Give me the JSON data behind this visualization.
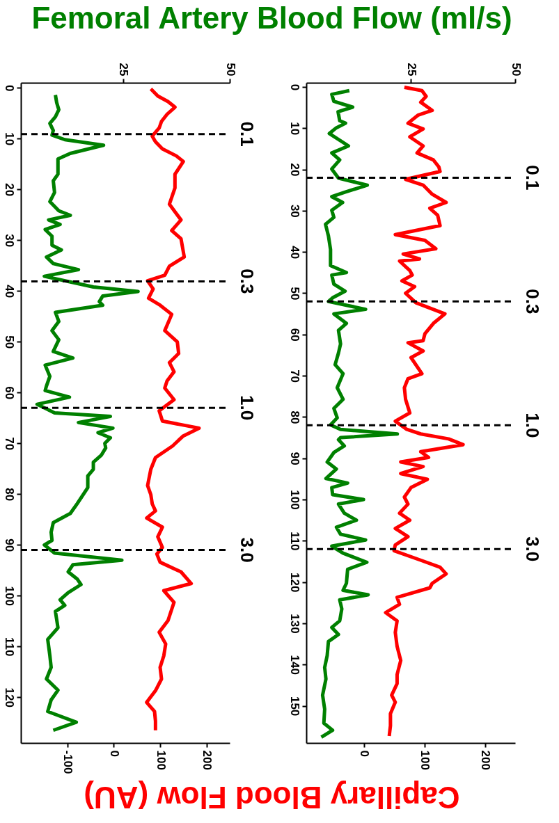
{
  "chart_data": [
    {
      "type": "line",
      "x2label": "Femoral Artery Blood Flow (ml/s)",
      "xlabel": "Capillary Blood Flow (AU)",
      "ylim": [
        129,
        -1
      ],
      "yticks": [
        0,
        10,
        20,
        30,
        40,
        50,
        60,
        70,
        80,
        90,
        100,
        110,
        120
      ],
      "x2lim": [
        1,
        50
      ],
      "x2ticks": [
        25,
        50
      ],
      "xlim": [
        -200,
        250
      ],
      "xticks": [
        -100,
        0,
        100,
        200
      ],
      "grid": false,
      "series": [
        {
          "color": "#008000",
          "axis": "x2",
          "values": [
            1.4,
            2.9,
            4.3,
            5.7,
            7.0,
            8.4,
            9.3,
            10.2,
            11.3,
            12.9,
            14.0,
            15.6,
            17.0,
            18.3,
            20.6,
            22.4,
            24.2,
            25.1,
            26.0,
            26.9,
            27.9,
            29.2,
            31.0,
            31.9,
            33.3,
            34.6,
            35.8,
            37.1,
            39.2,
            40.1,
            41.0,
            42.1,
            42.8,
            44.2,
            46.0,
            47.8,
            49.6,
            51.9,
            53.2,
            54.6,
            56.8,
            58.7,
            59.6,
            60.9,
            62.3,
            64.0,
            64.7,
            65.9,
            67.0,
            67.9,
            68.9,
            70.0,
            70.9,
            72.3,
            73.7,
            75.1,
            76.4,
            78.7,
            80.1,
            81.9,
            83.8,
            85.6,
            87.5,
            89.1,
            90.0,
            91.6,
            93.0,
            93.9,
            95.3,
            96.7,
            97.8,
            99.4,
            100.8,
            101.9,
            103.1,
            106.3,
            108.6,
            111.8,
            114.1,
            116.4,
            118.6,
            120.5,
            122.8,
            124.9,
            126.5
          ],
          "x": [
            9.1,
            9.4,
            9.9,
            9.1,
            7.8,
            8.6,
            8.3,
            11.3,
            20.4,
            12.6,
            9.7,
            9.7,
            9.7,
            8.6,
            8.9,
            7.8,
            9.9,
            12.6,
            7.5,
            10.2,
            6.7,
            8.3,
            8.3,
            10.5,
            7.0,
            8.6,
            14.5,
            6.5,
            18.0,
            28.5,
            20.2,
            19.4,
            20.2,
            9.1,
            9.9,
            8.3,
            9.9,
            8.6,
            13.2,
            6.7,
            7.8,
            7.0,
            6.7,
            12.4,
            4.8,
            8.9,
            22.0,
            14.5,
            22.6,
            19.1,
            22.0,
            20.7,
            20.9,
            19.9,
            18.0,
            18.0,
            16.7,
            16.7,
            15.6,
            14.2,
            12.6,
            8.6,
            8.1,
            8.3,
            6.5,
            8.9,
            24.7,
            13.2,
            12.1,
            14.2,
            15.1,
            12.1,
            10.2,
            11.3,
            9.1,
            9.7,
            7.3,
            7.8,
            8.1,
            7.0,
            9.7,
            8.1,
            7.3,
            14.0,
            8.6
          ]
        },
        {
          "color": "#ff0000",
          "values": [
            0.2,
            1.6,
            2.7,
            3.8,
            5.2,
            6.6,
            7.9,
            9.5,
            10.6,
            12.0,
            13.4,
            14.5,
            17.0,
            19.7,
            22.9,
            26.0,
            28.1,
            29.7,
            33.3,
            35.1,
            36.9,
            38.0,
            39.6,
            41.4,
            42.8,
            44.6,
            47.8,
            50.0,
            52.3,
            54.1,
            55.9,
            57.7,
            59.1,
            61.4,
            63.6,
            65.6,
            67.0,
            68.6,
            70.5,
            72.8,
            75.1,
            78.3,
            80.1,
            81.9,
            83.3,
            84.7,
            86.5,
            88.4,
            90.5,
            91.8,
            93.4,
            95.3,
            97.6,
            99.0,
            101.3,
            104.9,
            107.2,
            109.5,
            111.8,
            114.1,
            116.4,
            118.7,
            121.0,
            122.8,
            124.7,
            126.5
          ],
          "x": [
            80,
            95,
            117,
            132,
            115,
            103,
            98,
            83,
            90,
            105,
            135,
            150,
            132,
            132,
            120,
            145,
            125,
            145,
            152,
            120,
            110,
            73,
            85,
            75,
            100,
            125,
            110,
            137,
            140,
            120,
            130,
            115,
            110,
            130,
            98,
            105,
            184,
            149,
            127,
            90,
            80,
            73,
            80,
            83,
            90,
            71,
            105,
            95,
            105,
            93,
            100,
            145,
            167,
            108,
            130,
            117,
            98,
            112,
            108,
            100,
            103,
            90,
            71,
            88,
            90,
            90
          ]
        }
      ],
      "ref_lines": [
        {
          "axis": "y",
          "value": 9.1,
          "color": "#000000",
          "line_style": "dashed"
        },
        {
          "axis": "y",
          "value": 38.1,
          "color": "#000000",
          "line_style": "dashed"
        },
        {
          "axis": "y",
          "value": 63.0,
          "color": "#000000",
          "line_style": "dashed"
        },
        {
          "axis": "y",
          "value": 91.0,
          "color": "#000000",
          "line_style": "dashed"
        }
      ],
      "annotations": [
        "0.1",
        "0.3",
        "1.0",
        "3.0"
      ]
    },
    {
      "type": "line",
      "ylim": [
        159,
        -1
      ],
      "yticks": [
        0,
        10,
        20,
        30,
        40,
        50,
        60,
        70,
        80,
        90,
        100,
        110,
        120,
        130,
        140,
        150
      ],
      "x2lim": [
        0,
        50
      ],
      "x2ticks": [
        25,
        50
      ],
      "xlim": [
        -95,
        250
      ],
      "xticks": [
        0,
        100,
        200
      ],
      "grid": false,
      "series": [
        {
          "color": "#008000",
          "axis": "x2",
          "values": [
            0.9,
            1.8,
            3.5,
            4.9,
            6.0,
            8.2,
            8.8,
            9.9,
            11.3,
            14.3,
            16.0,
            17.7,
            19.9,
            22.1,
            23.8,
            25.5,
            26.6,
            28.0,
            29.9,
            31.6,
            33.3,
            36.1,
            39.4,
            43.3,
            45.0,
            45.6,
            47.8,
            49.5,
            51.1,
            52.0,
            53.9,
            55.0,
            57.3,
            59.0,
            62.3,
            64.5,
            67.3,
            69.5,
            72.9,
            75.7,
            77.9,
            80.2,
            81.9,
            83.0,
            84.1,
            85.0,
            85.5,
            87.0,
            88.6,
            90.9,
            92.6,
            94.9,
            96.0,
            97.1,
            98.8,
            100.0,
            101.1,
            103.3,
            105.0,
            106.7,
            108.4,
            109.8,
            111.3,
            113.0,
            115.2,
            116.9,
            120.3,
            122.0,
            123.1,
            124.3,
            126.5,
            129.4,
            131.0,
            132.7,
            134.4,
            137.8,
            140.7,
            143.5,
            147.4,
            150.8,
            154.2,
            155.9,
            157.6
          ],
          "x": [
            10.3,
            6.1,
            6.6,
            11.1,
            7.6,
            8.0,
            9.4,
            7.2,
            5.5,
            10.1,
            6.1,
            8.0,
            6.1,
            7.7,
            14.6,
            9.3,
            6.1,
            8.7,
            6.1,
            6.6,
            4.6,
            5.3,
            5.8,
            5.8,
            9.6,
            6.1,
            6.6,
            9.3,
            6.3,
            5.3,
            14.2,
            6.6,
            9.6,
            7.7,
            8.2,
            7.7,
            6.9,
            8.8,
            7.4,
            8.8,
            6.6,
            7.4,
            5.8,
            8.2,
            21.8,
            8.2,
            7.7,
            9.1,
            6.6,
            5.0,
            7.2,
            4.7,
            9.9,
            6.1,
            6.3,
            13.7,
            7.7,
            9.1,
            12.0,
            7.2,
            8.2,
            14.2,
            6.1,
            8.8,
            14.5,
            9.9,
            9.6,
            8.8,
            14.8,
            8.0,
            8.5,
            8.0,
            6.1,
            7.7,
            5.3,
            5.0,
            4.4,
            4.7,
            3.9,
            4.4,
            4.2,
            6.3,
            3.6
          ]
        },
        {
          "color": "#ff0000",
          "values": [
            0.1,
            0.9,
            2.3,
            3.7,
            5.7,
            6.8,
            8.8,
            10.2,
            12.1,
            14.3,
            16.0,
            17.7,
            19.4,
            20.5,
            22.4,
            23.8,
            26.0,
            28.0,
            29.4,
            31.1,
            33.6,
            35.8,
            37.2,
            39.2,
            40.5,
            41.7,
            42.2,
            44.5,
            45.6,
            47.0,
            48.4,
            50.0,
            52.3,
            55.0,
            57.3,
            59.8,
            61.5,
            62.0,
            64.0,
            65.6,
            69.5,
            70.7,
            72.9,
            75.7,
            79.0,
            81.0,
            83.0,
            84.1,
            85.3,
            86.7,
            88.4,
            89.8,
            90.9,
            92.0,
            93.7,
            95.1,
            97.1,
            99.4,
            101.1,
            103.3,
            105.0,
            107.0,
            109.0,
            111.0,
            112.4,
            114.7,
            116.4,
            118.0,
            120.3,
            121.4,
            123.7,
            125.4,
            127.4,
            129.4,
            132.2,
            135.6,
            139.0,
            142.4,
            144.6,
            147.4,
            149.1,
            151.9,
            154.8,
            157.3
          ],
          "x": [
            67,
            96,
            103,
            94,
            113,
            90,
            73,
            98,
            76,
            98,
            88,
            115,
            124,
            126,
            69,
            98,
            113,
            136,
            109,
            122,
            126,
            52,
            101,
            119,
            65,
            92,
            59,
            76,
            80,
            63,
            84,
            69,
            86,
            134,
            115,
            101,
            98,
            73,
            98,
            78,
            96,
            73,
            67,
            69,
            76,
            52,
            71,
            94,
            140,
            164,
            94,
            107,
            61,
            98,
            61,
            105,
            78,
            67,
            73,
            59,
            76,
            52,
            73,
            52,
            50,
            94,
            126,
            136,
            113,
            109,
            55,
            59,
            36,
            55,
            52,
            55,
            61,
            55,
            55,
            46,
            52,
            44,
            44,
            42
          ]
        }
      ],
      "ref_lines": [
        {
          "axis": "y",
          "value": 22.0,
          "color": "#000000",
          "line_style": "dashed"
        },
        {
          "axis": "y",
          "value": 52.0,
          "color": "#000000",
          "line_style": "dashed"
        },
        {
          "axis": "y",
          "value": 82.0,
          "color": "#000000",
          "line_style": "dashed"
        },
        {
          "axis": "y",
          "value": 112.0,
          "color": "#000000",
          "line_style": "dashed"
        }
      ],
      "annotations": [
        "0.1",
        "0.3",
        "1.0",
        "3.0"
      ]
    }
  ]
}
